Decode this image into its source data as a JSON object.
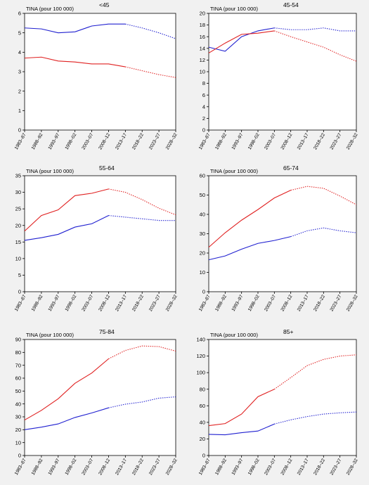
{
  "chart_data": [
    {
      "type": "line",
      "title": "<45",
      "ylabel": "TINA (pour 100 000)",
      "categories": [
        "1983–87",
        "1988–92",
        "1993–97",
        "1998–02",
        "2003–07",
        "2008–12",
        "2013–17",
        "2018–22",
        "2023–27",
        "2028–32"
      ],
      "ylim": [
        0,
        6
      ],
      "yticks": [
        0,
        1,
        2,
        3,
        4,
        5,
        6
      ],
      "observed_last_index": 6,
      "series": [
        {
          "color": "#2020d0",
          "values": [
            5.25,
            5.2,
            5.0,
            5.05,
            5.35,
            5.45,
            5.45,
            5.25,
            5.0,
            4.7
          ]
        },
        {
          "color": "#e02020",
          "values": [
            3.7,
            3.75,
            3.55,
            3.5,
            3.4,
            3.4,
            3.25,
            3.05,
            2.85,
            2.7
          ]
        }
      ]
    },
    {
      "type": "line",
      "title": "45-54",
      "ylabel": "TINA (pour 100 000)",
      "categories": [
        "1983–87",
        "1988–92",
        "1993–97",
        "1998–02",
        "2003–07",
        "2008–12",
        "2013–17",
        "2018–22",
        "2023–27",
        "2028–32"
      ],
      "ylim": [
        0,
        20
      ],
      "yticks": [
        0,
        2,
        4,
        6,
        8,
        10,
        12,
        14,
        16,
        18,
        20
      ],
      "observed_last_index": 4,
      "series": [
        {
          "color": "#2020d0",
          "values": [
            14.2,
            13.5,
            16.0,
            17.0,
            17.5,
            17.2,
            17.2,
            17.5,
            17.0,
            17.0
          ]
        },
        {
          "color": "#e02020",
          "values": [
            13.2,
            14.9,
            16.4,
            16.6,
            17.0,
            16.0,
            15.1,
            14.2,
            12.9,
            11.8
          ]
        }
      ]
    },
    {
      "type": "line",
      "title": "55-64",
      "ylabel": "TINA (pour 100 000)",
      "categories": [
        "1983–87",
        "1988–92",
        "1993–97",
        "1998–02",
        "2003–07",
        "2008–12",
        "2013–17",
        "2018–22",
        "2023–27",
        "2028–32"
      ],
      "ylim": [
        0,
        35
      ],
      "yticks": [
        0,
        5,
        10,
        15,
        20,
        25,
        30,
        35
      ],
      "observed_last_index": 5,
      "series": [
        {
          "color": "#2020d0",
          "values": [
            15.5,
            16.3,
            17.3,
            19.5,
            20.5,
            23.0,
            22.5,
            22.0,
            21.5,
            21.5
          ]
        },
        {
          "color": "#e02020",
          "values": [
            18.3,
            23.0,
            24.7,
            29.0,
            29.7,
            31.0,
            30.0,
            27.8,
            25.2,
            23.2
          ]
        }
      ]
    },
    {
      "type": "line",
      "title": "65-74",
      "ylabel": "TINA (pour 100 000)",
      "categories": [
        "1983–87",
        "1988–92",
        "1993–97",
        "1998–02",
        "2003–07",
        "2008–12",
        "2013–17",
        "2018–22",
        "2023–27",
        "2028–32"
      ],
      "ylim": [
        0,
        60
      ],
      "yticks": [
        0,
        10,
        20,
        30,
        40,
        50,
        60
      ],
      "observed_last_index": 5,
      "series": [
        {
          "color": "#2020d0",
          "values": [
            16.5,
            18.5,
            22.0,
            25.0,
            26.5,
            28.5,
            31.5,
            33.0,
            31.5,
            30.5
          ]
        },
        {
          "color": "#e02020",
          "values": [
            23.0,
            30.5,
            37.0,
            42.5,
            48.5,
            52.5,
            54.5,
            53.5,
            49.5,
            45.0
          ]
        }
      ]
    },
    {
      "type": "line",
      "title": "75-84",
      "ylabel": "TINA (pour 100 000)",
      "categories": [
        "1983–87",
        "1988–92",
        "1993–97",
        "1998–02",
        "2003–07",
        "2008–12",
        "2013–17",
        "2018–22",
        "2023–27",
        "2028–32"
      ],
      "ylim": [
        0,
        90
      ],
      "yticks": [
        0,
        10,
        20,
        30,
        40,
        50,
        60,
        70,
        80,
        90
      ],
      "observed_last_index": 5,
      "series": [
        {
          "color": "#2020d0",
          "values": [
            20.0,
            22.0,
            24.5,
            29.5,
            33.0,
            37.0,
            39.8,
            41.5,
            44.5,
            45.5
          ]
        },
        {
          "color": "#e02020",
          "values": [
            27.5,
            35.0,
            44.0,
            56.0,
            64.0,
            75.0,
            81.5,
            85.0,
            84.5,
            81.0
          ]
        }
      ]
    },
    {
      "type": "line",
      "title": "85+",
      "ylabel": "TINA (pour 100 000)",
      "categories": [
        "1983–87",
        "1988–92",
        "1993–97",
        "1998–02",
        "2003–07",
        "2008–12",
        "2013–17",
        "2018–22",
        "2023–27",
        "2028–32"
      ],
      "ylim": [
        0,
        140
      ],
      "yticks": [
        0,
        20,
        40,
        60,
        80,
        100,
        120,
        140
      ],
      "observed_last_index": 4,
      "series": [
        {
          "color": "#2020d0",
          "values": [
            25.5,
            25.0,
            27.5,
            29.5,
            38.0,
            43.0,
            47.0,
            50.0,
            51.5,
            52.5
          ]
        },
        {
          "color": "#e02020",
          "values": [
            36.0,
            38.5,
            50.0,
            71.0,
            80.0,
            94.0,
            108.5,
            116.0,
            120.0,
            121.5
          ]
        }
      ]
    }
  ]
}
